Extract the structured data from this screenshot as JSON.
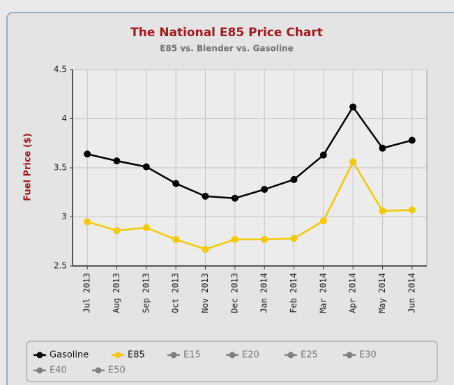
{
  "chart_data": {
    "type": "line",
    "title": "The National E85 Price Chart",
    "subtitle": "E85 vs. Blender vs. Gasoline",
    "y_label": "Fuel Price ($)",
    "categories": [
      "Jul 2013",
      "Aug 2013",
      "Sep 2013",
      "Oct 2013",
      "Nov 2013",
      "Dec 2013",
      "Jan 2014",
      "Feb 2014",
      "Mar 2014",
      "Apr 2014",
      "May 2014",
      "Jun 2014"
    ],
    "series": [
      {
        "name": "Gasoline",
        "color": "#000000",
        "values": [
          3.64,
          3.57,
          3.51,
          3.34,
          3.21,
          3.19,
          3.28,
          3.38,
          3.63,
          4.12,
          3.7,
          3.78
        ]
      },
      {
        "name": "E85",
        "color": "#f5c800",
        "values": [
          2.95,
          2.86,
          2.89,
          2.77,
          2.67,
          2.77,
          2.77,
          2.78,
          2.96,
          3.56,
          3.06,
          3.07
        ]
      }
    ],
    "legend_items": [
      {
        "name": "E15",
        "color": "#808080"
      },
      {
        "name": "E20",
        "color": "#808080"
      },
      {
        "name": "E25",
        "color": "#808080"
      },
      {
        "name": "E30",
        "color": "#808080"
      },
      {
        "name": "E40",
        "color": "#808080"
      },
      {
        "name": "E50",
        "color": "#808080"
      }
    ],
    "ylim": [
      2.5,
      4.5
    ],
    "yticks": [
      2.5,
      3,
      3.5,
      4,
      4.5
    ],
    "grid": true
  }
}
